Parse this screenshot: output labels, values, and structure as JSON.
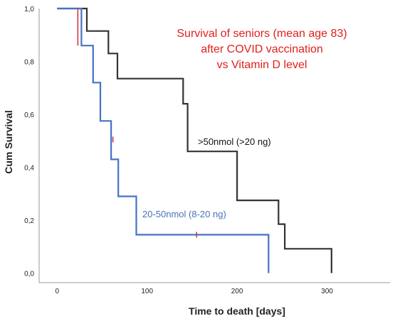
{
  "chart_data": {
    "type": "line",
    "step": true,
    "title_lines": [
      "Survival of seniors (mean age 83)",
      "after COVID vaccination",
      "vs Vitamin D level"
    ],
    "title_color": "#e0201c",
    "xlabel": "Time to death [days]",
    "ylabel": "Cum Survival",
    "xlim": [
      -20,
      370
    ],
    "ylim": [
      -0.02,
      1.0
    ],
    "xticks": [
      0,
      100,
      200,
      300
    ],
    "xtick_labels": [
      "0",
      "100",
      "200",
      "300"
    ],
    "yticks": [
      0.0,
      0.2,
      0.4,
      0.6,
      0.8,
      1.0
    ],
    "ytick_labels": [
      "0,0",
      "0,2",
      "0,4",
      "0,6",
      "0,8",
      "1,0"
    ],
    "grid": false,
    "legend": "none",
    "series": [
      {
        "name": ">50nmol (>20 ng)",
        "color": "#333333",
        "label_color": "#111111",
        "points": [
          [
            0,
            1.0
          ],
          [
            33,
            1.0
          ],
          [
            33,
            0.915
          ],
          [
            57,
            0.915
          ],
          [
            57,
            0.83
          ],
          [
            67,
            0.83
          ],
          [
            67,
            0.735
          ],
          [
            140,
            0.735
          ],
          [
            140,
            0.64
          ],
          [
            145,
            0.64
          ],
          [
            145,
            0.46
          ],
          [
            200,
            0.46
          ],
          [
            200,
            0.275
          ],
          [
            246,
            0.275
          ],
          [
            246,
            0.185
          ],
          [
            253,
            0.185
          ],
          [
            253,
            0.092
          ],
          [
            305,
            0.092
          ],
          [
            305,
            0.0
          ]
        ]
      },
      {
        "name": "20-50nmol (8-20 ng)",
        "color": "#4472c4",
        "label_color": "#4a72b8",
        "points": [
          [
            0,
            1.0
          ],
          [
            27,
            1.0
          ],
          [
            27,
            0.86
          ],
          [
            40,
            0.86
          ],
          [
            40,
            0.72
          ],
          [
            48,
            0.72
          ],
          [
            48,
            0.575
          ],
          [
            60,
            0.575
          ],
          [
            60,
            0.43
          ],
          [
            68,
            0.43
          ],
          [
            68,
            0.29
          ],
          [
            88,
            0.29
          ],
          [
            88,
            0.145
          ],
          [
            235,
            0.145
          ],
          [
            235,
            0.0
          ]
        ]
      }
    ],
    "censor_marks": [
      {
        "x": 23,
        "y": 1.0,
        "to_y": 0.86,
        "color": "#d23a4a"
      },
      {
        "x": 62,
        "y": 0.505,
        "color": "#d23a4a"
      },
      {
        "x": 155,
        "y": 0.145,
        "color": "#d23a4a"
      }
    ]
  }
}
